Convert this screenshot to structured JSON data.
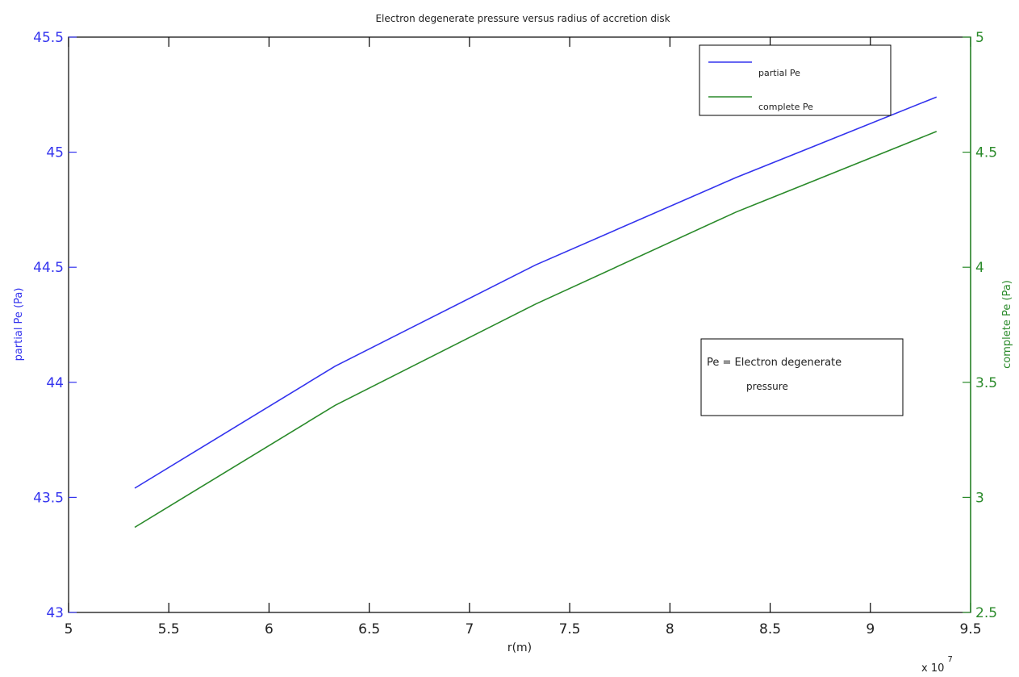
{
  "colors": {
    "partial": "#3333ee",
    "complete": "#2a8a2a",
    "axis": "#000000"
  },
  "chart_data": {
    "type": "line",
    "title": "Electron degenerate pressure versus radius of accretion disk",
    "xlabel": "r(m)",
    "x_multiplier_label": "x 10",
    "x_multiplier_exp": "7",
    "xlim": [
      5,
      9.5
    ],
    "x_ticks": [
      "5",
      "5.5",
      "6",
      "6.5",
      "7",
      "7.5",
      "8",
      "8.5",
      "9",
      "9.5"
    ],
    "x_tick_values": [
      5,
      5.5,
      6,
      6.5,
      7,
      7.5,
      8,
      8.5,
      9,
      9.5
    ],
    "left_axis": {
      "label": "partial Pe (Pa)",
      "ylim": [
        43,
        45.5
      ],
      "ticks": [
        "43",
        "43.5",
        "44",
        "44.5",
        "45",
        "45.5"
      ],
      "tick_values": [
        43,
        43.5,
        44,
        44.5,
        45,
        45.5
      ]
    },
    "right_axis": {
      "label": "complete Pe (Pa)",
      "ylim": [
        2.5,
        5
      ],
      "ticks": [
        "2.5",
        "3",
        "3.5",
        "4",
        "4.5",
        "5"
      ],
      "tick_values": [
        2.5,
        3,
        3.5,
        4,
        4.5,
        5
      ]
    },
    "x": [
      5.33,
      6.33,
      7.33,
      8.33,
      9.33
    ],
    "series": [
      {
        "name": "partial Pe",
        "axis": "left",
        "values": [
          43.54,
          44.07,
          44.51,
          44.89,
          45.24
        ]
      },
      {
        "name": "complete Pe",
        "axis": "right",
        "values": [
          2.87,
          3.4,
          3.84,
          4.24,
          4.59
        ]
      }
    ],
    "legend": {
      "placement": "top-right",
      "entries": [
        "partial Pe",
        "complete Pe"
      ]
    },
    "annotation": {
      "line1": "Pe = Electron degenerate",
      "line2": "pressure"
    },
    "grid": false
  }
}
